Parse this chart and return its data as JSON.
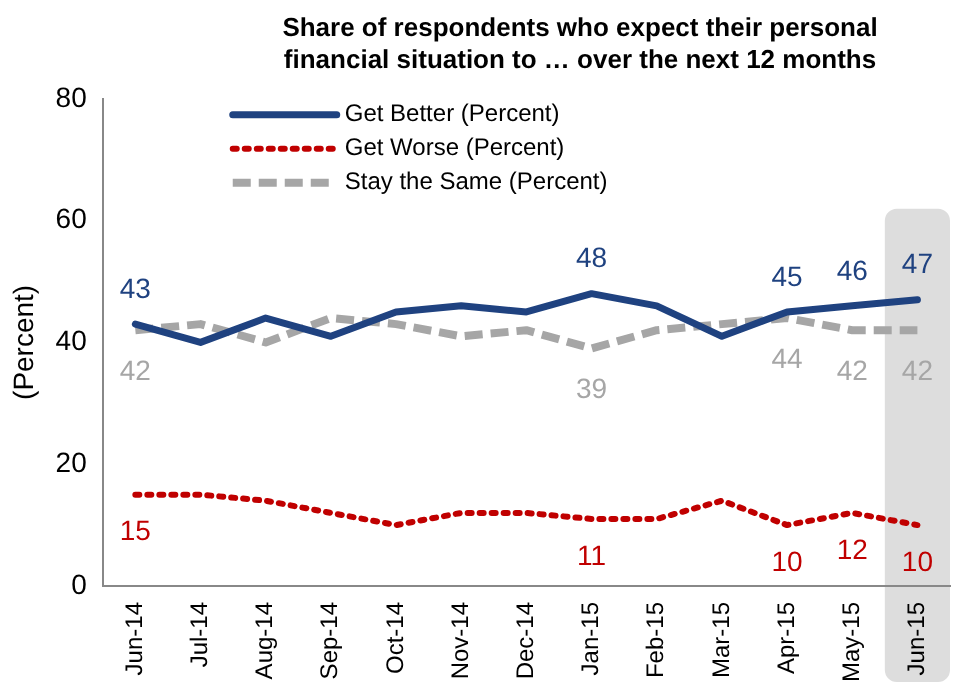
{
  "chart_data": {
    "type": "line",
    "title": "Share of respondents who expect their personal financial situation to … over the next 12 months",
    "ylabel": "(Percent)",
    "categories": [
      "Jun-14",
      "Jul-14",
      "Aug-14",
      "Sep-14",
      "Oct-14",
      "Nov-14",
      "Dec-14",
      "Jan-15",
      "Feb-15",
      "Mar-15",
      "Apr-15",
      "May-15",
      "Jun-15"
    ],
    "series": [
      {
        "name": "Get Better (Percent)",
        "color": "#1f4280",
        "line_style": "solid",
        "values": [
          43,
          40,
          44,
          41,
          45,
          46,
          45,
          48,
          46,
          41,
          45,
          46,
          47
        ],
        "value_labels": [
          "43",
          null,
          null,
          null,
          null,
          null,
          null,
          "48",
          null,
          null,
          "45",
          "46",
          "47"
        ]
      },
      {
        "name": "Get Worse (Percent)",
        "color": "#c00000",
        "line_style": "dotted",
        "values": [
          15,
          15,
          14,
          12,
          10,
          12,
          12,
          11,
          11,
          14,
          10,
          12,
          10
        ],
        "value_labels": [
          "15",
          null,
          null,
          null,
          null,
          null,
          null,
          "11",
          null,
          null,
          "10",
          "12",
          "10"
        ]
      },
      {
        "name": "Stay the Same (Percent)",
        "color": "#a6a6a6",
        "line_style": "dashed",
        "values": [
          42,
          43,
          40,
          44,
          43,
          41,
          42,
          39,
          42,
          43,
          44,
          42,
          42
        ],
        "value_labels": [
          "42",
          null,
          null,
          null,
          null,
          null,
          null,
          "39",
          null,
          null,
          "44",
          "42",
          "42"
        ]
      }
    ],
    "ylim": [
      0,
      80
    ],
    "yticks": [
      0,
      20,
      40,
      60,
      80
    ],
    "grid": false,
    "legend": "top",
    "marker": "none",
    "bands": [
      {
        "axis": "x",
        "from": "Jun-15",
        "to": "Jun-15",
        "color": "#dddddd"
      }
    ]
  }
}
